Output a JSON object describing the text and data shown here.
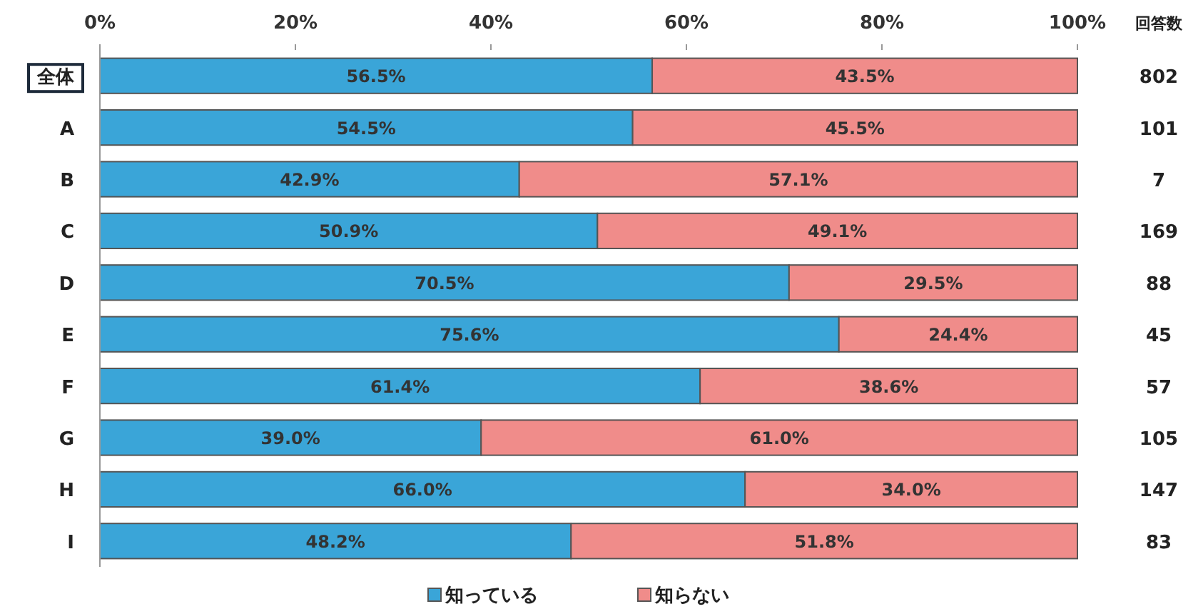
{
  "chart_data": {
    "type": "bar",
    "orientation": "horizontal",
    "stacked": true,
    "categories": [
      "全体",
      "A",
      "B",
      "C",
      "D",
      "E",
      "F",
      "G",
      "H",
      "I"
    ],
    "y2_categories": [
      "802",
      "101",
      "7",
      "169",
      "88",
      "45",
      "57",
      "105",
      "147",
      "83"
    ],
    "series": [
      {
        "name": "知っている",
        "color": "#3aa5d8",
        "values": [
          56.5,
          54.5,
          42.9,
          50.9,
          70.5,
          75.6,
          61.4,
          39.0,
          66.0,
          48.2
        ],
        "value_labels": [
          "56.5%",
          "54.5%",
          "42.9%",
          "50.9%",
          "70.5%",
          "75.6%",
          "61.4%",
          "39.0%",
          "66.0%",
          "48.2%"
        ]
      },
      {
        "name": "知らない",
        "color": "#f08c8a",
        "values": [
          43.5,
          45.5,
          57.1,
          49.1,
          29.5,
          24.4,
          38.6,
          61.0,
          34.0,
          51.8
        ],
        "value_labels": [
          "43.5%",
          "45.5%",
          "57.1%",
          "49.1%",
          "29.5%",
          "24.4%",
          "38.6%",
          "61.0%",
          "34.0%",
          "51.8%"
        ]
      }
    ],
    "xlim": [
      0,
      100
    ],
    "xticks": [
      {
        "value": 0,
        "label": "0%"
      },
      {
        "value": 20,
        "label": "20%"
      },
      {
        "value": 40,
        "label": "40%"
      },
      {
        "value": 60,
        "label": "60%"
      },
      {
        "value": 80,
        "label": "80%"
      },
      {
        "value": 100,
        "label": "100%"
      }
    ],
    "annotations": [
      "回答数"
    ],
    "grid": false,
    "legend": "bottom"
  }
}
